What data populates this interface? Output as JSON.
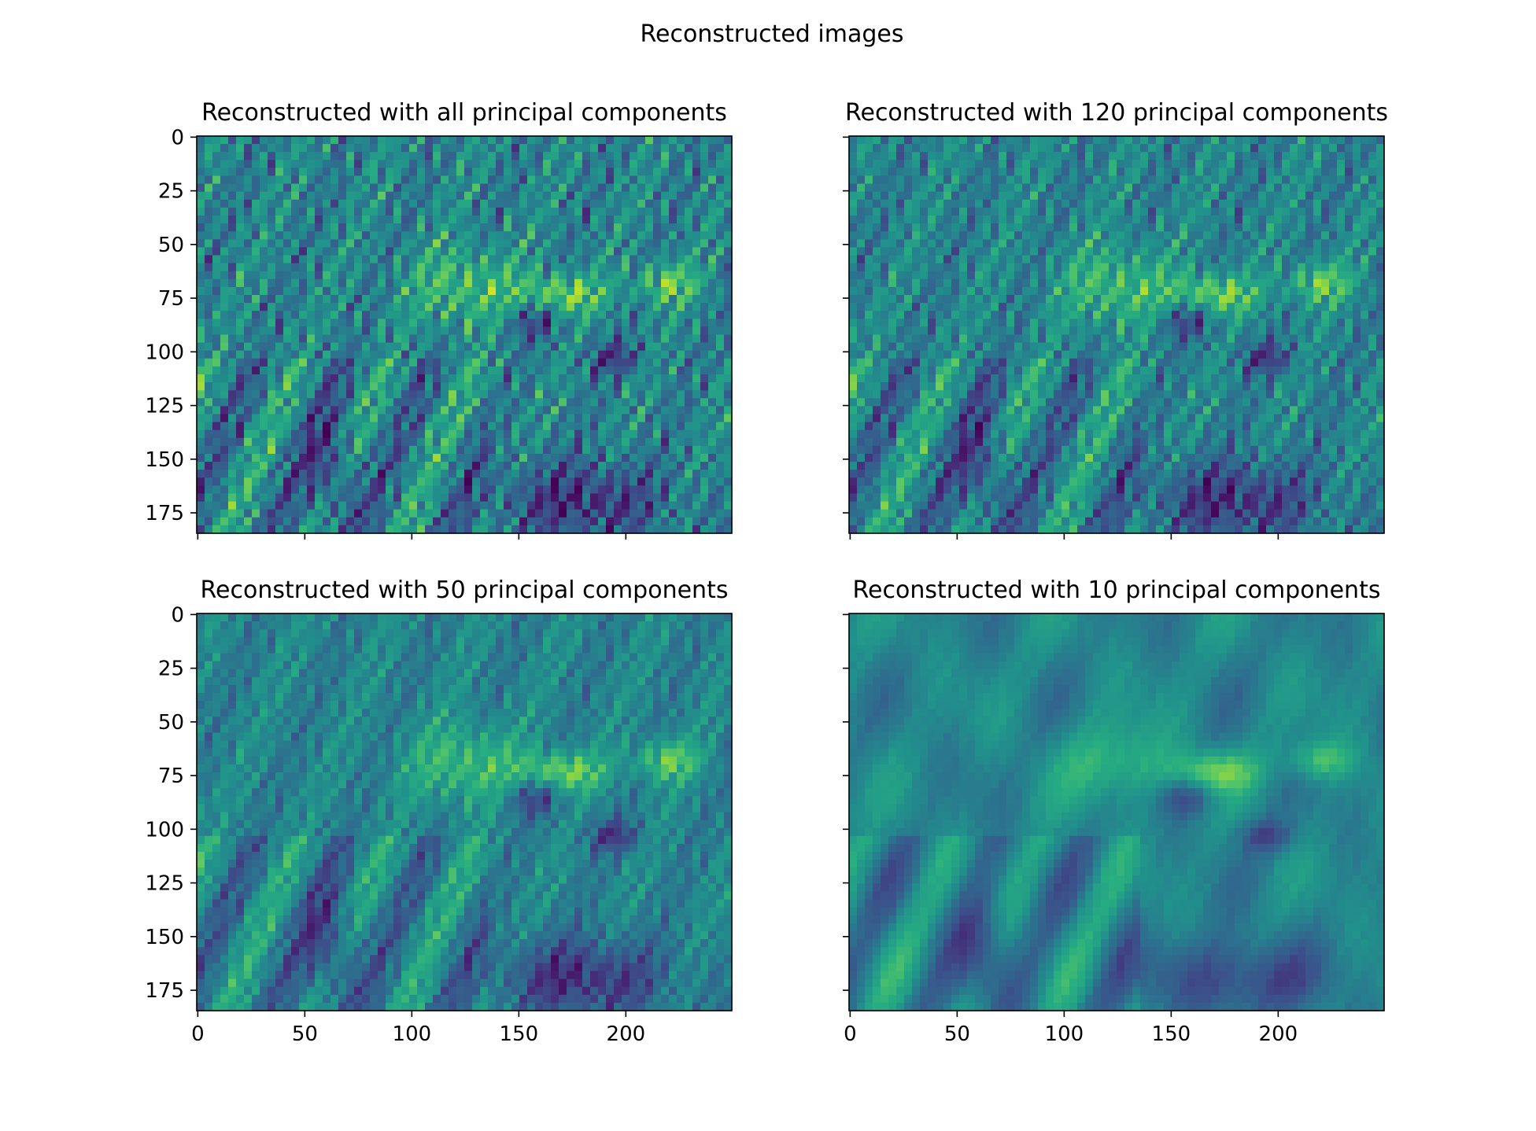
{
  "figure": {
    "suptitle": "Reconstructed images"
  },
  "colors": {
    "viridis_dark": "#440154",
    "viridis_mid": "#21918c",
    "viridis_light": "#fde725",
    "frame": "#000000"
  },
  "chart_data": [
    {
      "type": "heatmap",
      "title": "Reconstructed with all principal components",
      "xticks": [
        0,
        50,
        100,
        150,
        200
      ],
      "yticks": [
        0,
        25,
        50,
        75,
        100,
        125,
        150,
        175
      ],
      "xlim": [
        -0.5,
        249.5
      ],
      "ylim": [
        184.5,
        -0.5
      ],
      "image_shape": [
        185,
        250
      ],
      "components": "all",
      "colormap": "viridis",
      "show_xtick_labels": false,
      "show_ytick_labels": true
    },
    {
      "type": "heatmap",
      "title": "Reconstructed with 120 principal components",
      "xticks": [
        0,
        50,
        100,
        150,
        200
      ],
      "yticks": [
        0,
        25,
        50,
        75,
        100,
        125,
        150,
        175
      ],
      "xlim": [
        -0.5,
        249.5
      ],
      "ylim": [
        184.5,
        -0.5
      ],
      "image_shape": [
        185,
        250
      ],
      "components": 120,
      "colormap": "viridis",
      "show_xtick_labels": false,
      "show_ytick_labels": false
    },
    {
      "type": "heatmap",
      "title": "Reconstructed with 50 principal components",
      "xticks": [
        0,
        50,
        100,
        150,
        200
      ],
      "yticks": [
        0,
        25,
        50,
        75,
        100,
        125,
        150,
        175
      ],
      "xlim": [
        -0.5,
        249.5
      ],
      "ylim": [
        184.5,
        -0.5
      ],
      "image_shape": [
        185,
        250
      ],
      "components": 50,
      "colormap": "viridis",
      "show_xtick_labels": true,
      "show_ytick_labels": true
    },
    {
      "type": "heatmap",
      "title": "Reconstructed with 10 principal components",
      "xticks": [
        0,
        50,
        100,
        150,
        200
      ],
      "yticks": [
        0,
        25,
        50,
        75,
        100,
        125,
        150,
        175
      ],
      "xlim": [
        -0.5,
        249.5
      ],
      "ylim": [
        184.5,
        -0.5
      ],
      "image_shape": [
        185,
        250
      ],
      "components": 10,
      "colormap": "viridis",
      "show_xtick_labels": true,
      "show_ytick_labels": false
    }
  ]
}
